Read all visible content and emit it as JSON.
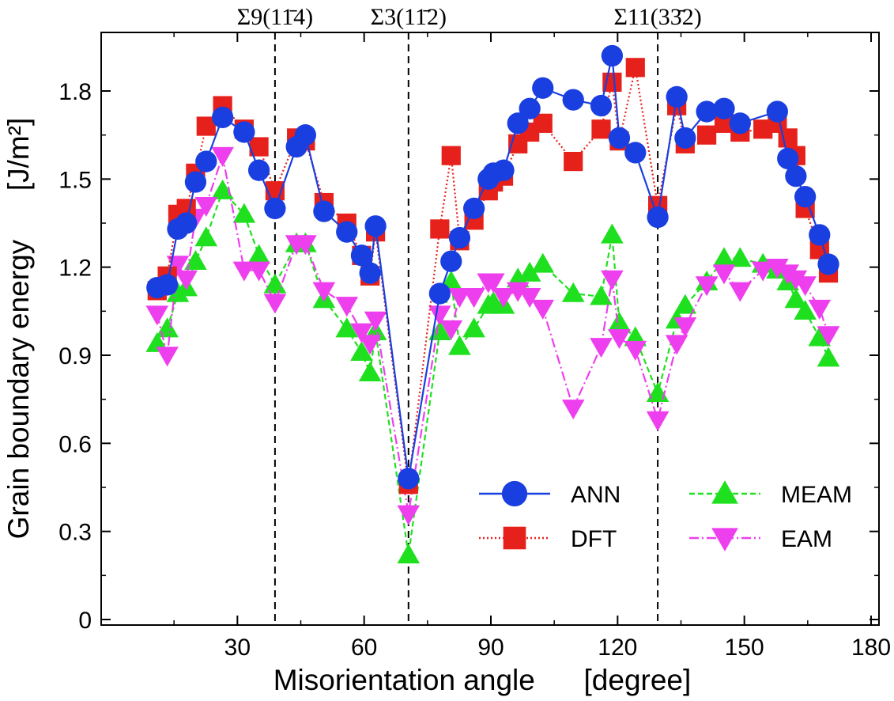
{
  "chart_data": {
    "type": "line",
    "title": "",
    "xlabel": "Misorientation angle      [degree]",
    "ylabel": "Grain boundary energy      [J/m²]",
    "xlim": [
      0,
      180
    ],
    "ylim": [
      0,
      1.95
    ],
    "xticks": [
      30,
      60,
      90,
      120,
      150,
      180
    ],
    "yticks": [
      0,
      0.3,
      0.6,
      0.9,
      1.2,
      1.5,
      1.8
    ],
    "xtick_labels": [
      "30",
      "60",
      "90",
      "120",
      "150",
      "180"
    ],
    "ytick_labels": [
      "0",
      "0.3",
      "0.6",
      "0.9",
      "1.2",
      "1.5",
      "1.8"
    ],
    "grid": false,
    "legend_position": "bottom-right",
    "reference_lines": [
      {
        "x": 38.9,
        "label": "Σ9(11̄4)"
      },
      {
        "x": 70.5,
        "label": "Σ3(11̄2)"
      },
      {
        "x": 129.5,
        "label": "Σ11(33̄2)"
      }
    ],
    "series": [
      {
        "name": "ANN",
        "color": "#1a3fe0",
        "marker": "circle",
        "line": "solid",
        "x": [
          11.0,
          13.4,
          15.9,
          17.9,
          20.1,
          22.6,
          26.5,
          31.6,
          35.1,
          38.9,
          44.0,
          46.1,
          50.5,
          55.9,
          59.4,
          61.4,
          62.7,
          70.5,
          77.9,
          80.6,
          82.6,
          86.0,
          89.4,
          90.6,
          93.0,
          96.4,
          99.2,
          102.3,
          109.5,
          116.1,
          118.7,
          120.4,
          124.2,
          129.5,
          134.0,
          136.0,
          141.1,
          145.2,
          149.0,
          157.8,
          160.3,
          162.2,
          164.4,
          167.8,
          169.9
        ],
        "y": [
          1.13,
          1.14,
          1.33,
          1.35,
          1.49,
          1.56,
          1.71,
          1.66,
          1.53,
          1.4,
          1.61,
          1.65,
          1.39,
          1.32,
          1.24,
          1.18,
          1.34,
          0.48,
          1.11,
          1.22,
          1.3,
          1.4,
          1.5,
          1.52,
          1.53,
          1.69,
          1.74,
          1.81,
          1.77,
          1.75,
          1.92,
          1.64,
          1.59,
          1.37,
          1.78,
          1.64,
          1.73,
          1.74,
          1.69,
          1.73,
          1.57,
          1.51,
          1.44,
          1.31,
          1.21
        ]
      },
      {
        "name": "DFT",
        "color": "#e6201a",
        "marker": "square",
        "line": "dotted",
        "x": [
          11.0,
          13.4,
          15.9,
          17.9,
          20.1,
          22.6,
          26.5,
          31.6,
          35.1,
          38.9,
          44.0,
          46.1,
          50.5,
          55.9,
          59.4,
          61.4,
          62.7,
          70.5,
          77.9,
          80.6,
          82.6,
          86.0,
          89.4,
          90.6,
          93.0,
          96.4,
          99.2,
          102.3,
          109.5,
          116.1,
          118.7,
          120.4,
          124.2,
          129.5,
          134.0,
          136.0,
          141.1,
          145.2,
          149.0,
          154.4,
          157.8,
          160.3,
          162.2,
          164.4,
          167.8,
          169.9
        ],
        "y": [
          1.12,
          1.17,
          1.38,
          1.4,
          1.52,
          1.68,
          1.75,
          1.67,
          1.61,
          1.46,
          1.64,
          1.63,
          1.42,
          1.35,
          1.24,
          1.17,
          1.32,
          0.46,
          1.33,
          1.58,
          1.29,
          1.36,
          1.46,
          1.49,
          1.51,
          1.62,
          1.66,
          1.69,
          1.56,
          1.67,
          1.83,
          1.63,
          1.88,
          1.41,
          1.75,
          1.62,
          1.65,
          1.69,
          1.66,
          1.67,
          1.69,
          1.64,
          1.58,
          1.4,
          1.26,
          1.18
        ]
      },
      {
        "name": "MEAM",
        "color": "#1fe01f",
        "marker": "triangle-up",
        "line": "dashed",
        "x": [
          11.0,
          13.4,
          15.9,
          17.9,
          20.1,
          22.6,
          26.5,
          31.6,
          35.1,
          38.9,
          44.0,
          46.1,
          50.5,
          55.9,
          59.4,
          61.4,
          62.7,
          70.5,
          77.9,
          80.6,
          82.6,
          86.0,
          89.4,
          90.6,
          93.0,
          96.4,
          99.2,
          102.3,
          109.5,
          116.1,
          118.7,
          120.4,
          124.2,
          129.5,
          134.0,
          136.0,
          141.1,
          145.2,
          149.0,
          154.4,
          157.8,
          160.3,
          162.2,
          164.4,
          167.8,
          169.9
        ],
        "y": [
          0.94,
          0.99,
          1.11,
          1.13,
          1.22,
          1.3,
          1.46,
          1.38,
          1.24,
          1.14,
          1.28,
          1.28,
          1.09,
          0.99,
          0.91,
          0.84,
          0.98,
          0.22,
          0.98,
          1.15,
          0.93,
          0.99,
          1.07,
          1.08,
          1.07,
          1.16,
          1.18,
          1.21,
          1.11,
          1.1,
          1.31,
          1.01,
          0.96,
          0.77,
          1.02,
          1.07,
          1.15,
          1.23,
          1.23,
          1.21,
          1.19,
          1.15,
          1.09,
          1.05,
          0.96,
          0.89
        ]
      },
      {
        "name": "EAM",
        "color": "#ee3fee",
        "marker": "triangle-down",
        "line": "dashdot",
        "x": [
          11.0,
          13.4,
          15.9,
          17.9,
          20.1,
          22.6,
          26.5,
          31.6,
          35.1,
          38.9,
          44.0,
          46.1,
          50.5,
          55.9,
          59.4,
          61.4,
          62.7,
          70.5,
          77.9,
          80.6,
          82.6,
          86.0,
          89.4,
          90.6,
          93.0,
          96.4,
          99.2,
          102.3,
          109.5,
          116.1,
          118.7,
          120.4,
          124.2,
          129.5,
          134.0,
          136.0,
          141.1,
          145.2,
          149.0,
          154.4,
          157.8,
          160.3,
          162.2,
          164.4,
          167.8,
          169.9
        ],
        "y": [
          1.04,
          0.9,
          1.21,
          1.16,
          1.37,
          1.41,
          1.58,
          1.19,
          1.19,
          1.08,
          1.28,
          1.28,
          1.12,
          1.07,
          0.98,
          0.94,
          1.02,
          0.36,
          1.04,
          0.99,
          1.1,
          1.1,
          1.15,
          1.15,
          1.1,
          1.12,
          1.1,
          1.06,
          0.72,
          0.93,
          1.16,
          0.96,
          0.92,
          0.68,
          0.94,
          1.0,
          1.14,
          1.18,
          1.12,
          1.19,
          1.2,
          1.18,
          1.16,
          1.14,
          1.06,
          0.97
        ]
      }
    ]
  }
}
